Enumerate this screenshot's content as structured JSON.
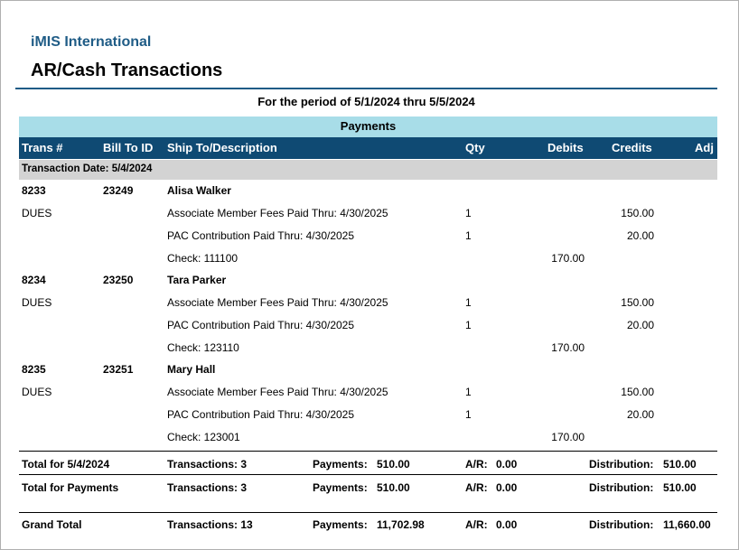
{
  "org": "iMIS International",
  "title": "AR/Cash Transactions",
  "period": "For the period of 5/1/2024 thru 5/5/2024",
  "section": "Payments",
  "columns": {
    "trans": "Trans #",
    "billto": "Bill To ID",
    "shipto": "Ship To/Description",
    "qty": "Qty",
    "debits": "Debits",
    "credits": "Credits",
    "adj": "Adj"
  },
  "date_group": "Transaction Date: 5/4/2024",
  "transactions": [
    {
      "trans": "8233",
      "billto": "23249",
      "name": "Alisa Walker",
      "type": "DUES",
      "lines": [
        {
          "desc": "Associate Member Fees Paid Thru: 4/30/2025",
          "qty": "1",
          "debit": "",
          "credit": "150.00"
        },
        {
          "desc": "PAC Contribution Paid Thru: 4/30/2025",
          "qty": "1",
          "debit": "",
          "credit": "20.00"
        },
        {
          "desc": "Check: 111100",
          "qty": "",
          "debit": "170.00",
          "credit": ""
        }
      ]
    },
    {
      "trans": "8234",
      "billto": "23250",
      "name": "Tara Parker",
      "type": "DUES",
      "lines": [
        {
          "desc": "Associate Member Fees Paid Thru: 4/30/2025",
          "qty": "1",
          "debit": "",
          "credit": "150.00"
        },
        {
          "desc": "PAC Contribution Paid Thru: 4/30/2025",
          "qty": "1",
          "debit": "",
          "credit": "20.00"
        },
        {
          "desc": "Check: 123110",
          "qty": "",
          "debit": "170.00",
          "credit": ""
        }
      ]
    },
    {
      "trans": "8235",
      "billto": "23251",
      "name": "Mary Hall",
      "type": "DUES",
      "lines": [
        {
          "desc": "Associate Member Fees Paid Thru: 4/30/2025",
          "qty": "1",
          "debit": "",
          "credit": "150.00"
        },
        {
          "desc": "PAC Contribution Paid Thru: 4/30/2025",
          "qty": "1",
          "debit": "",
          "credit": "20.00"
        },
        {
          "desc": "Check: 123001",
          "qty": "",
          "debit": "170.00",
          "credit": ""
        }
      ]
    }
  ],
  "totals": [
    {
      "label": "Total for 5/4/2024",
      "transactions": "Transactions: 3",
      "payments_label": "Payments:",
      "payments": "510.00",
      "ar_label": "A/R:",
      "ar": "0.00",
      "dist_label": "Distribution:",
      "dist": "510.00"
    },
    {
      "label": "Total for Payments",
      "transactions": "Transactions: 3",
      "payments_label": "Payments:",
      "payments": "510.00",
      "ar_label": "A/R:",
      "ar": "0.00",
      "dist_label": "Distribution:",
      "dist": "510.00"
    },
    {
      "label": "Grand Total",
      "transactions": "Transactions: 13",
      "payments_label": "Payments:",
      "payments": "11,702.98",
      "ar_label": "A/R:",
      "ar": "0.00",
      "dist_label": "Distribution:",
      "dist": "11,660.00"
    }
  ]
}
